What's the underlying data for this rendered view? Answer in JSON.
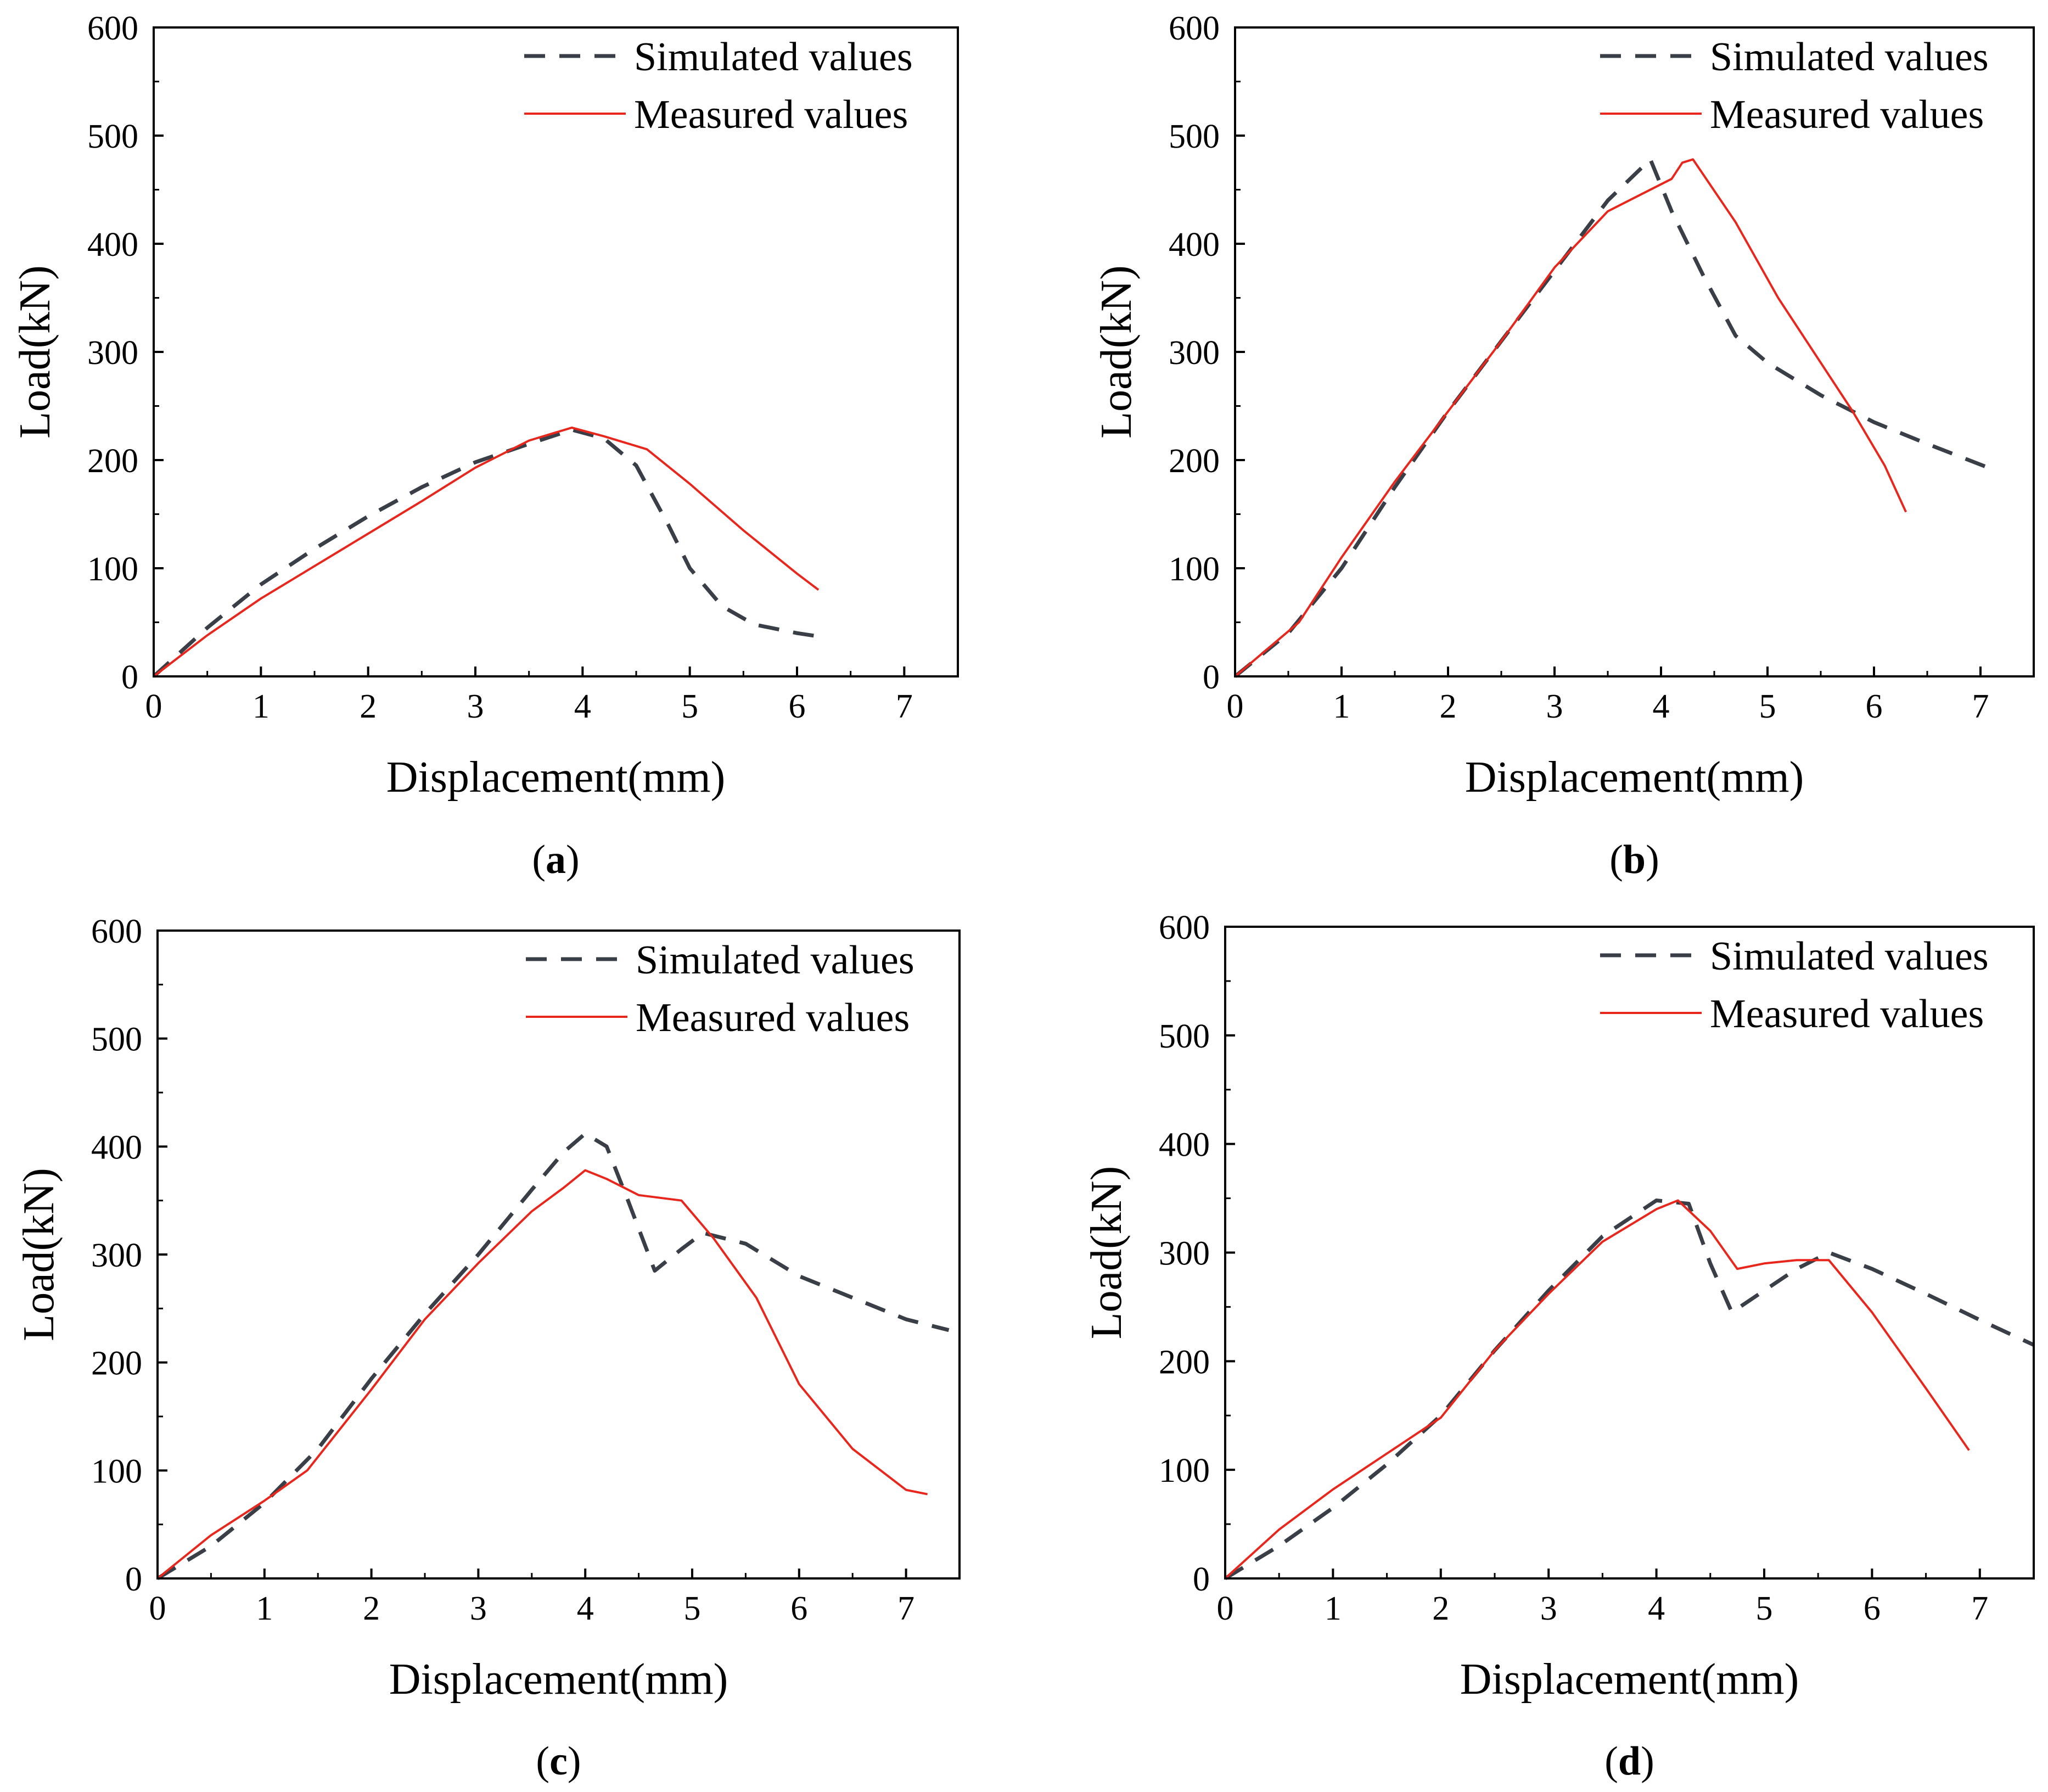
{
  "figure": {
    "panels": [
      {
        "caption_letter": "a",
        "caption_open": "(",
        "caption_close": ")"
      },
      {
        "caption_letter": "b",
        "caption_open": "(",
        "caption_close": ")"
      },
      {
        "caption_letter": "c",
        "caption_open": "(",
        "caption_close": ")"
      },
      {
        "caption_letter": "d",
        "caption_open": "(",
        "caption_close": ")"
      }
    ]
  },
  "colors": {
    "simulated": "#3a3f47",
    "measured": "#e8261c",
    "axis": "#000000"
  },
  "chart_data": [
    {
      "type": "line",
      "panel": "a",
      "xlabel": "Displacement(mm)",
      "ylabel": "Load(kN)",
      "xlim": [
        0,
        7.5
      ],
      "ylim": [
        0,
        600
      ],
      "xticks": [
        0,
        1,
        2,
        3,
        4,
        5,
        6,
        7
      ],
      "yticks": [
        0,
        100,
        200,
        300,
        400,
        500,
        600
      ],
      "legend_position": "top-right",
      "series": [
        {
          "name": "Simulated values",
          "style": "dashed",
          "x": [
            0,
            0.5,
            1,
            1.5,
            2,
            2.5,
            3,
            3.5,
            3.9,
            4.2,
            4.5,
            4.8,
            5,
            5.3,
            5.6,
            6,
            6.2
          ],
          "y": [
            0,
            45,
            85,
            118,
            148,
            175,
            198,
            215,
            228,
            220,
            195,
            140,
            100,
            65,
            48,
            40,
            37
          ]
        },
        {
          "name": "Measured values",
          "style": "solid",
          "x": [
            0,
            0.5,
            1,
            1.5,
            2,
            2.5,
            3,
            3.5,
            3.9,
            4.2,
            4.6,
            5,
            5.5,
            6,
            6.2
          ],
          "y": [
            0,
            38,
            72,
            102,
            132,
            162,
            193,
            218,
            230,
            222,
            210,
            178,
            135,
            95,
            80
          ]
        }
      ]
    },
    {
      "type": "line",
      "panel": "b",
      "xlabel": "Displacement(mm)",
      "ylabel": "Load(kN)",
      "xlim": [
        0,
        7.5
      ],
      "ylim": [
        0,
        600
      ],
      "xticks": [
        0,
        1,
        2,
        3,
        4,
        5,
        6,
        7
      ],
      "yticks": [
        0,
        100,
        200,
        300,
        400,
        500,
        600
      ],
      "legend_position": "top-right",
      "series": [
        {
          "name": "Simulated values",
          "style": "dashed",
          "x": [
            0,
            0.5,
            1,
            1.5,
            2,
            2.5,
            3,
            3.5,
            3.9,
            4.1,
            4.4,
            4.7,
            5,
            5.5,
            6,
            6.5,
            7.1
          ],
          "y": [
            0,
            40,
            100,
            175,
            245,
            310,
            375,
            440,
            478,
            430,
            370,
            315,
            290,
            260,
            235,
            215,
            192
          ]
        },
        {
          "name": "Measured values",
          "style": "solid",
          "x": [
            0,
            0.6,
            1,
            1.5,
            2,
            2.5,
            3,
            3.5,
            3.8,
            4.1,
            4.2,
            4.3,
            4.7,
            5.1,
            5.5,
            5.8,
            6.1,
            6.3
          ],
          "y": [
            0,
            50,
            110,
            180,
            245,
            310,
            378,
            430,
            445,
            460,
            475,
            478,
            420,
            350,
            290,
            245,
            195,
            152
          ]
        }
      ]
    },
    {
      "type": "line",
      "panel": "c",
      "xlabel": "Displacement(mm)",
      "ylabel": "Load(kN)",
      "xlim": [
        0,
        7.5
      ],
      "ylim": [
        0,
        600
      ],
      "xticks": [
        0,
        1,
        2,
        3,
        4,
        5,
        6,
        7
      ],
      "yticks": [
        0,
        100,
        200,
        300,
        400,
        500,
        600
      ],
      "legend_position": "top-right",
      "series": [
        {
          "name": "Simulated values",
          "style": "dashed",
          "x": [
            0,
            0.5,
            1,
            1.5,
            2,
            2.5,
            3,
            3.5,
            3.8,
            4,
            4.2,
            4.4,
            4.65,
            4.9,
            5.1,
            5.5,
            6,
            6.5,
            7,
            7.4
          ],
          "y": [
            0,
            30,
            70,
            120,
            185,
            245,
            300,
            360,
            395,
            412,
            400,
            350,
            285,
            305,
            320,
            310,
            280,
            260,
            240,
            230
          ]
        },
        {
          "name": "Measured values",
          "style": "solid",
          "x": [
            0,
            0.5,
            1,
            1.4,
            2,
            2.5,
            3,
            3.5,
            3.8,
            4,
            4.2,
            4.5,
            4.9,
            5.2,
            5.6,
            6,
            6.5,
            7,
            7.2
          ],
          "y": [
            0,
            40,
            72,
            100,
            175,
            240,
            292,
            340,
            362,
            378,
            370,
            355,
            350,
            315,
            260,
            180,
            120,
            82,
            78
          ]
        }
      ]
    },
    {
      "type": "line",
      "panel": "d",
      "xlabel": "Displacement(mm)",
      "ylabel": "Load(kN)",
      "xlim": [
        0,
        7.5
      ],
      "ylim": [
        0,
        600
      ],
      "xticks": [
        0,
        1,
        2,
        3,
        4,
        5,
        6,
        7
      ],
      "yticks": [
        0,
        100,
        200,
        300,
        400,
        500,
        600
      ],
      "legend_position": "top-right",
      "series": [
        {
          "name": "Simulated values",
          "style": "dashed",
          "x": [
            0,
            0.5,
            1,
            1.5,
            2,
            2.5,
            3,
            3.5,
            4,
            4.3,
            4.5,
            4.7,
            5,
            5.3,
            5.6,
            6,
            6.5,
            7,
            7.5
          ],
          "y": [
            0,
            30,
            65,
            105,
            150,
            210,
            265,
            315,
            348,
            345,
            290,
            245,
            265,
            285,
            300,
            285,
            262,
            238,
            215
          ]
        },
        {
          "name": "Measured values",
          "style": "solid",
          "x": [
            0,
            0.5,
            1,
            1.5,
            2,
            2.5,
            3,
            3.5,
            4,
            4.2,
            4.5,
            4.75,
            5,
            5.3,
            5.6,
            6,
            6.5,
            6.9
          ],
          "y": [
            0,
            45,
            82,
            115,
            148,
            210,
            262,
            310,
            340,
            348,
            320,
            285,
            290,
            293,
            293,
            245,
            175,
            118
          ]
        }
      ]
    }
  ]
}
